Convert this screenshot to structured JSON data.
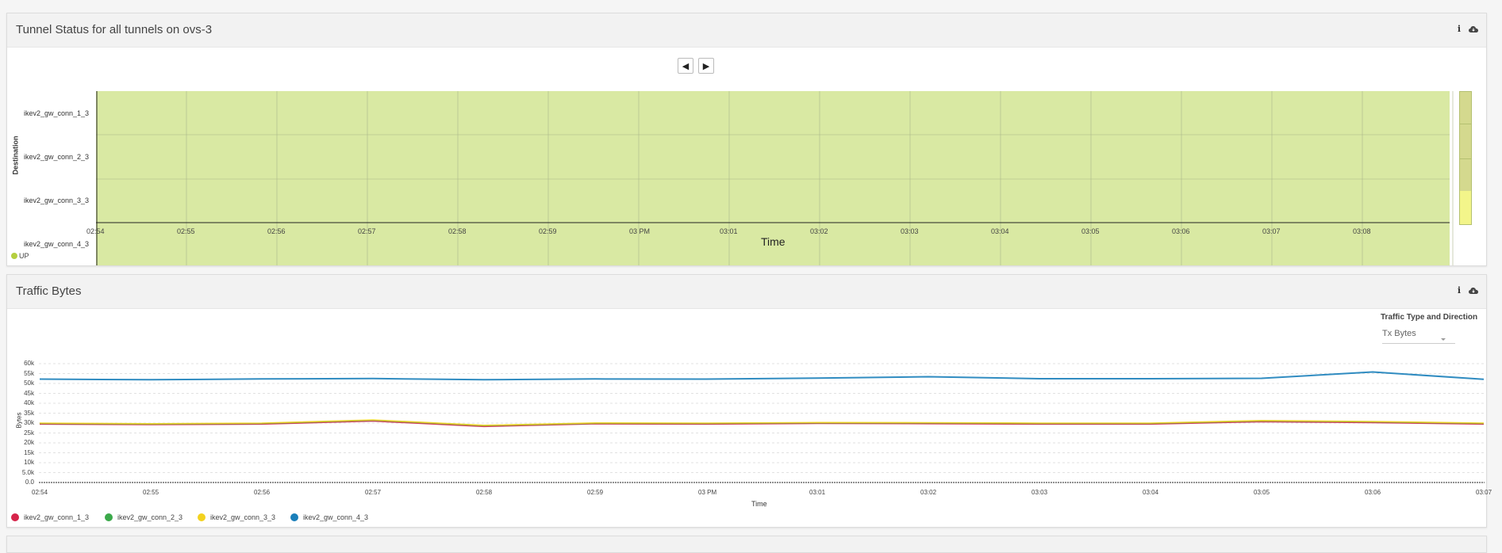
{
  "panel1": {
    "title": "Tunnel Status for all tunnels on ovs-3",
    "y_axis_title": "Destination",
    "x_axis_title": "Time",
    "rows": [
      "ikev2_gw_conn_1_3",
      "ikev2_gw_conn_2_3",
      "ikev2_gw_conn_3_3",
      "ikev2_gw_conn_4_3"
    ],
    "x_ticks": [
      "02:54",
      "02:55",
      "02:56",
      "02:57",
      "02:58",
      "02:59",
      "03 PM",
      "03:01",
      "03:02",
      "03:03",
      "03:04",
      "03:05",
      "03:06",
      "03:07",
      "03:08"
    ],
    "legend": [
      {
        "label": "UP",
        "color": "#b5cf3f"
      }
    ],
    "status_fill": "#d9e9a3",
    "pager": {
      "prev": "◀",
      "next": "▶"
    }
  },
  "panel2": {
    "title": "Traffic Bytes",
    "selector": {
      "label": "Traffic Type and Direction",
      "value": "Tx Bytes"
    },
    "legend": [
      {
        "label": "ikev2_gw_conn_1_3",
        "color": "#d6244a"
      },
      {
        "label": "ikev2_gw_conn_2_3",
        "color": "#3ba94a"
      },
      {
        "label": "ikev2_gw_conn_3_3",
        "color": "#f3d21f"
      },
      {
        "label": "ikev2_gw_conn_4_3",
        "color": "#1a7fba"
      }
    ]
  },
  "chart_data": {
    "type": "line",
    "title": "",
    "xlabel": "Time",
    "ylabel": "Bytes",
    "x": [
      "02:54",
      "02:55",
      "02:56",
      "02:57",
      "02:58",
      "02:59",
      "03 PM",
      "03:01",
      "03:02",
      "03:03",
      "03:04",
      "03:05",
      "03:06",
      "03:07"
    ],
    "y_ticks": [
      "0.0",
      "5.0k",
      "10k",
      "15k",
      "20k",
      "25k",
      "30k",
      "35k",
      "40k",
      "45k",
      "50k",
      "55k",
      "60k"
    ],
    "ylim": [
      0,
      60000
    ],
    "grid": true,
    "legend_position": "bottom-left",
    "series": [
      {
        "name": "ikev2_gw_conn_1_3",
        "color": "#d6244a",
        "values": [
          29500,
          29200,
          29500,
          31000,
          28300,
          29600,
          29500,
          29800,
          29700,
          29500,
          29500,
          30700,
          30200,
          29500
        ]
      },
      {
        "name": "ikev2_gw_conn_2_3",
        "color": "#3ba94a",
        "values": [
          29800,
          29500,
          29800,
          31400,
          28700,
          29900,
          29800,
          30100,
          30000,
          29800,
          29800,
          31100,
          30600,
          29800
        ]
      },
      {
        "name": "ikev2_gw_conn_3_3",
        "color": "#f3d21f",
        "values": [
          30000,
          29700,
          30000,
          31600,
          28900,
          30100,
          30000,
          30300,
          30200,
          30000,
          30000,
          31300,
          30800,
          30000
        ]
      },
      {
        "name": "ikev2_gw_conn_4_3",
        "color": "#1a7fba",
        "values": [
          52200,
          51900,
          52300,
          52500,
          51900,
          52300,
          52200,
          52700,
          53400,
          52400,
          52400,
          52600,
          55800,
          52100
        ]
      }
    ]
  }
}
